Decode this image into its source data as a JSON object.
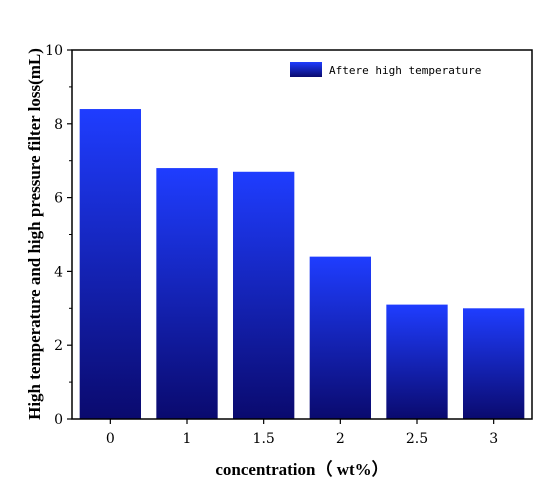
{
  "chart_data": {
    "type": "bar",
    "categories": [
      "0",
      "1",
      "1.5",
      "2",
      "2.5",
      "3"
    ],
    "values": [
      8.4,
      6.8,
      6.7,
      4.4,
      3.1,
      3.0
    ],
    "series": [
      {
        "name": "Aftere high temperature",
        "values": [
          8.4,
          6.8,
          6.7,
          4.4,
          3.1,
          3.0
        ]
      }
    ],
    "xlabel": "concentration（ wt%）",
    "ylabel": "High temperature and high pressure filter loss(mL)",
    "ylim": [
      0,
      10
    ],
    "yticks": [
      "0",
      "2",
      "4",
      "6",
      "8",
      "10"
    ],
    "legend_position": "top-right",
    "grid": false,
    "colors": {
      "bar_top": "#1f3dff",
      "bar_bottom": "#0a0a6e",
      "axis": "#000000"
    }
  }
}
